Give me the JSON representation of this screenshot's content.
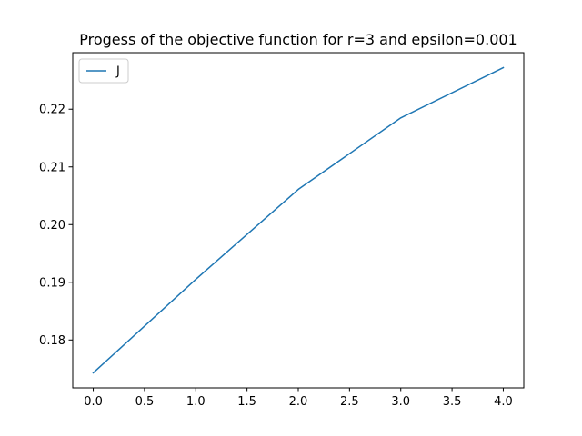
{
  "chart_data": {
    "type": "line",
    "title": "Progess of the objective function for r=3 and epsilon=0.001",
    "xlabel": "",
    "ylabel": "",
    "x": [
      0.0,
      1.0,
      2.0,
      3.0,
      4.0
    ],
    "series": [
      {
        "name": "J",
        "color": "#1f77b4",
        "values": [
          0.1743,
          0.1905,
          0.2061,
          0.2185,
          0.2272
        ]
      }
    ],
    "xlim": [
      -0.2,
      4.2
    ],
    "ylim": [
      0.1717,
      0.2298
    ],
    "xticks": [
      0.0,
      0.5,
      1.0,
      1.5,
      2.0,
      2.5,
      3.0,
      3.5,
      4.0
    ],
    "xtick_labels": [
      "0.0",
      "0.5",
      "1.0",
      "1.5",
      "2.0",
      "2.5",
      "3.0",
      "3.5",
      "4.0"
    ],
    "yticks": [
      0.18,
      0.19,
      0.2,
      0.21,
      0.22
    ],
    "ytick_labels": [
      "0.18",
      "0.19",
      "0.20",
      "0.21",
      "0.22"
    ],
    "grid": false,
    "legend_position": "upper-left"
  }
}
